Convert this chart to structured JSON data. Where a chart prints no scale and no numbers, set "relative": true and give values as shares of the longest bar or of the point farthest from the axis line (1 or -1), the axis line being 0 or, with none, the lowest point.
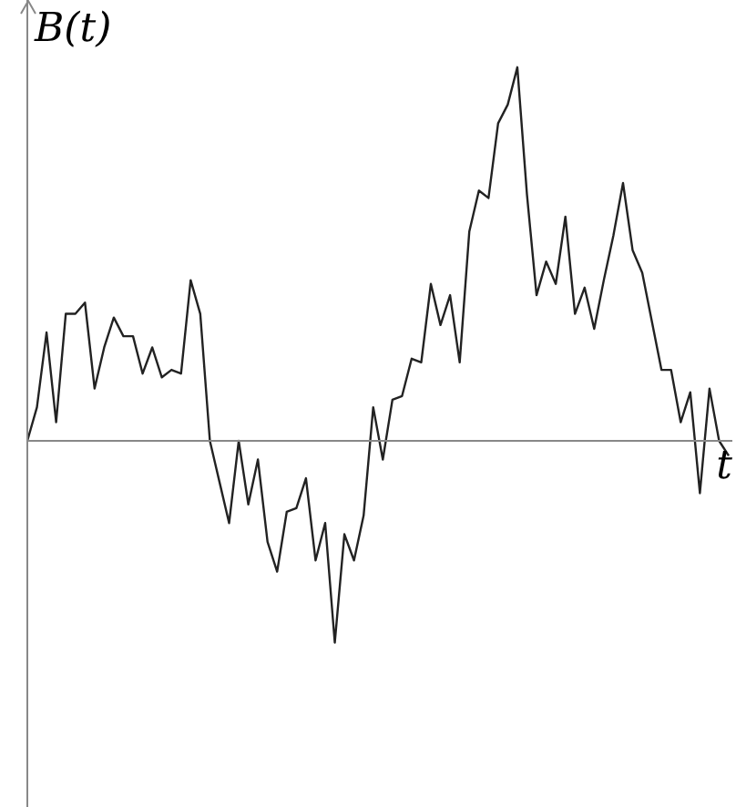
{
  "chart_data": {
    "type": "line",
    "relative": true,
    "xlabel": "t",
    "ylabel": "B(t)",
    "color": "#222222",
    "line_style": "solid",
    "categories": [
      null,
      null,
      null,
      null,
      null,
      null,
      null,
      null,
      null,
      null,
      null,
      null,
      null,
      null,
      null,
      null,
      null,
      null,
      null,
      null,
      null,
      null,
      null,
      null,
      null,
      null,
      null,
      null,
      null,
      null,
      null,
      null,
      null,
      null,
      null,
      null,
      null,
      null,
      null,
      null,
      null,
      null,
      null,
      null,
      null,
      null,
      null,
      null,
      null,
      null,
      null,
      null,
      null,
      null,
      null,
      null,
      null,
      null,
      null,
      null,
      null,
      null,
      null,
      null,
      null,
      null,
      null,
      null,
      null,
      null,
      null,
      null,
      null,
      null
    ],
    "values": [
      0,
      0.09,
      0.29,
      0.05,
      0.34,
      0.34,
      0.37,
      0.14,
      0.25,
      0.33,
      0.28,
      0.28,
      0.18,
      0.25,
      0.17,
      0.19,
      0.18,
      0.43,
      0.34,
      0,
      -0.11,
      -0.22,
      0,
      -0.17,
      -0.05,
      -0.27,
      -0.35,
      -0.19,
      -0.18,
      -0.1,
      -0.32,
      -0.22,
      -0.54,
      -0.25,
      -0.32,
      -0.2,
      0.09,
      -0.05,
      0.11,
      0.12,
      0.22,
      0.21,
      0.42,
      0.31,
      0.39,
      0.21,
      0.56,
      0.67,
      0.65,
      0.85,
      0.9,
      1,
      0.66,
      0.39,
      0.48,
      0.42,
      0.6,
      0.34,
      0.41,
      0.3,
      0.43,
      0.55,
      0.69,
      0.51,
      0.45,
      0.32,
      0.19,
      0.19,
      0.05,
      0.13,
      -0.14,
      0.14,
      0,
      -0.04
    ]
  }
}
